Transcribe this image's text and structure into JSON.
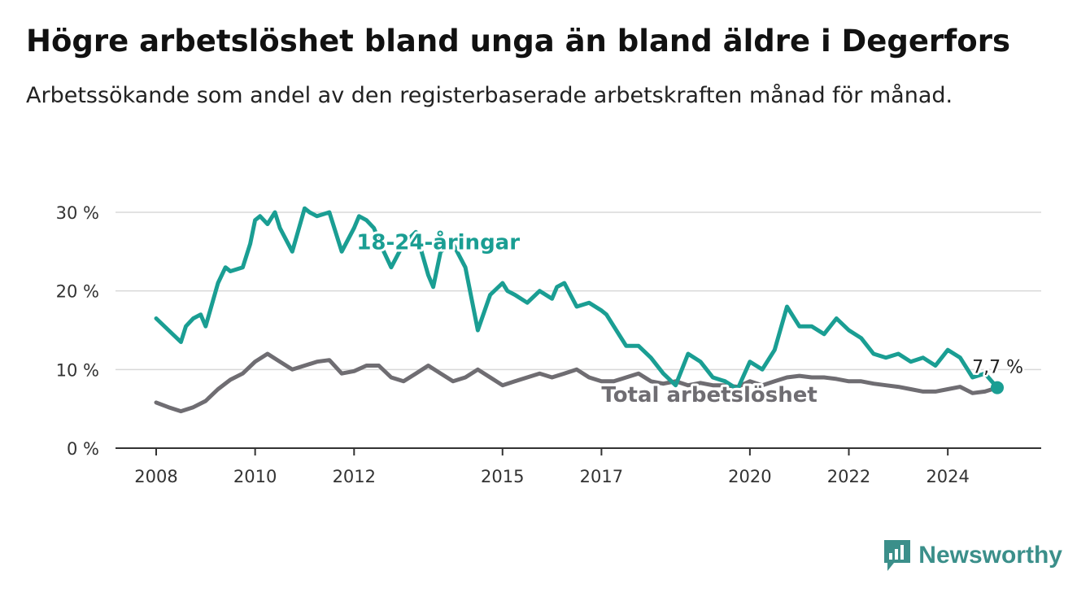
{
  "title": "Högre arbetslöshet bland unga än bland äldre i Degerfors",
  "subtitle": "Arbetssökande som andel av den registerbaserade arbetskraften månad för månad.",
  "brand": {
    "name": "Newsworthy",
    "icon": "newsworthy-logo-icon",
    "color": "#3b8f8a"
  },
  "colors": {
    "youth": "#1a9e93",
    "total": "#6f6d72",
    "grid": "#d9d9d9",
    "axis": "#333333"
  },
  "end_label": "7,7 %",
  "chart_data": {
    "type": "line",
    "title": "Högre arbetslöshet bland unga än bland äldre i Degerfors",
    "subtitle": "Arbetssökande som andel av den registerbaserade arbetskraften månad för månad.",
    "xlabel": "",
    "ylabel": "",
    "ylim": [
      0,
      30
    ],
    "xlim": [
      2008,
      2025
    ],
    "y_ticks": [
      0,
      10,
      20,
      30
    ],
    "y_tick_labels": [
      "0 %",
      "10 %",
      "20 %",
      "30 %"
    ],
    "x_ticks": [
      2008,
      2010,
      2012,
      2015,
      2017,
      2020,
      2022,
      2024
    ],
    "x_tick_labels": [
      "2008",
      "2010",
      "2012",
      "2015",
      "2017",
      "2020",
      "2022",
      "2024"
    ],
    "grid": "horizontal",
    "series": [
      {
        "name": "18-24-åringar",
        "color": "#1a9e93",
        "x": [
          2008.0,
          2008.25,
          2008.5,
          2008.6,
          2008.75,
          2008.9,
          2009.0,
          2009.25,
          2009.4,
          2009.5,
          2009.75,
          2009.9,
          2010.0,
          2010.1,
          2010.25,
          2010.4,
          2010.5,
          2010.75,
          2011.0,
          2011.1,
          2011.25,
          2011.5,
          2011.75,
          2012.0,
          2012.1,
          2012.25,
          2012.4,
          2012.6,
          2012.75,
          2013.0,
          2013.25,
          2013.5,
          2013.6,
          2013.75,
          2014.0,
          2014.25,
          2014.5,
          2014.75,
          2015.0,
          2015.1,
          2015.25,
          2015.5,
          2015.75,
          2016.0,
          2016.1,
          2016.25,
          2016.5,
          2016.75,
          2017.0,
          2017.1,
          2017.25,
          2017.5,
          2017.75,
          2018.0,
          2018.25,
          2018.5,
          2018.75,
          2019.0,
          2019.25,
          2019.5,
          2019.75,
          2020.0,
          2020.25,
          2020.5,
          2020.75,
          2021.0,
          2021.25,
          2021.5,
          2021.75,
          2022.0,
          2022.25,
          2022.5,
          2022.75,
          2023.0,
          2023.25,
          2023.5,
          2023.75,
          2024.0,
          2024.25,
          2024.5,
          2024.75,
          2025.0
        ],
        "values": [
          16.5,
          15.0,
          13.5,
          15.5,
          16.5,
          17.0,
          15.5,
          21.0,
          23.0,
          22.5,
          23.0,
          26.0,
          29.0,
          29.5,
          28.5,
          30.0,
          28.0,
          25.0,
          30.5,
          30.0,
          29.5,
          30.0,
          25.0,
          28.0,
          29.5,
          29.0,
          28.0,
          25.0,
          23.0,
          26.0,
          27.5,
          22.0,
          20.5,
          25.0,
          26.0,
          23.0,
          15.0,
          19.5,
          21.0,
          20.0,
          19.5,
          18.5,
          20.0,
          19.0,
          20.5,
          21.0,
          18.0,
          18.5,
          17.5,
          17.0,
          15.5,
          13.0,
          13.0,
          11.5,
          9.5,
          8.0,
          12.0,
          11.0,
          9.0,
          8.5,
          7.5,
          11.0,
          10.0,
          12.5,
          18.0,
          15.5,
          15.5,
          14.5,
          16.5,
          15.0,
          14.0,
          12.0,
          11.5,
          12.0,
          11.0,
          11.5,
          10.5,
          12.5,
          11.5,
          9.0,
          9.5,
          7.7
        ]
      },
      {
        "name": "Total arbetslöshet",
        "color": "#6f6d72",
        "x": [
          2008.0,
          2008.25,
          2008.5,
          2008.75,
          2009.0,
          2009.25,
          2009.5,
          2009.75,
          2010.0,
          2010.25,
          2010.5,
          2010.75,
          2011.0,
          2011.25,
          2011.5,
          2011.75,
          2012.0,
          2012.25,
          2012.5,
          2012.75,
          2013.0,
          2013.25,
          2013.5,
          2013.75,
          2014.0,
          2014.25,
          2014.5,
          2014.75,
          2015.0,
          2015.25,
          2015.5,
          2015.75,
          2016.0,
          2016.25,
          2016.5,
          2016.75,
          2017.0,
          2017.25,
          2017.5,
          2017.75,
          2018.0,
          2018.25,
          2018.5,
          2018.75,
          2019.0,
          2019.25,
          2019.5,
          2019.75,
          2020.0,
          2020.25,
          2020.5,
          2020.75,
          2021.0,
          2021.25,
          2021.5,
          2021.75,
          2022.0,
          2022.25,
          2022.5,
          2022.75,
          2023.0,
          2023.25,
          2023.5,
          2023.75,
          2024.0,
          2024.25,
          2024.5,
          2024.75,
          2025.0
        ],
        "values": [
          5.8,
          5.2,
          4.7,
          5.2,
          6.0,
          7.5,
          8.7,
          9.5,
          11.0,
          12.0,
          11.0,
          10.0,
          10.5,
          11.0,
          11.2,
          9.5,
          9.8,
          10.5,
          10.5,
          9.0,
          8.5,
          9.5,
          10.5,
          9.5,
          8.5,
          9.0,
          10.0,
          9.0,
          8.0,
          8.5,
          9.0,
          9.5,
          9.0,
          9.5,
          10.0,
          9.0,
          8.5,
          8.5,
          9.0,
          9.5,
          8.5,
          8.2,
          8.5,
          8.0,
          8.3,
          8.0,
          8.0,
          7.8,
          8.5,
          8.0,
          8.5,
          9.0,
          9.2,
          9.0,
          9.0,
          8.8,
          8.5,
          8.5,
          8.2,
          8.0,
          7.8,
          7.5,
          7.2,
          7.2,
          7.5,
          7.8,
          7.0,
          7.2,
          7.7
        ]
      }
    ],
    "annotations": [
      {
        "text": "7,7 %",
        "x": 2025.0,
        "y": 7.7
      }
    ]
  }
}
